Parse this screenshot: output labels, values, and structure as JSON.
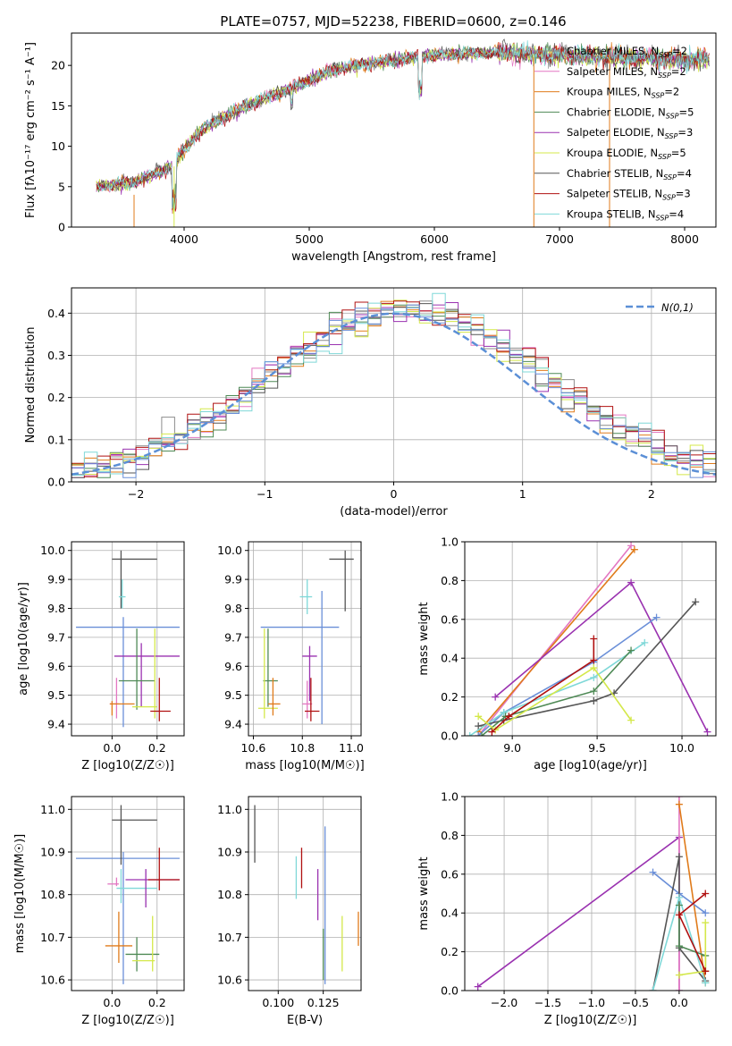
{
  "title": "PLATE=0757, MJD=52238, FIBERID=0600, z=0.146",
  "colors": [
    "#8c8c8c",
    "#e377c2",
    "#e07b1b",
    "#4f8a56",
    "#9a32b0",
    "#d4e84a",
    "#555555",
    "#b01010",
    "#7fd8d8",
    "#6a8fd8"
  ],
  "chart_data": [
    {
      "type": "line",
      "name": "spectrum",
      "xlabel": "wavelength [Angstrom, rest frame]",
      "ylabel": "Flux [fλ10⁻¹⁷ erg cm⁻² s⁻¹ A⁻¹]",
      "xlim": [
        3100,
        8250
      ],
      "ylim": [
        0,
        24
      ],
      "xticks": [
        4000,
        5000,
        6000,
        7000,
        8000
      ],
      "yticks": [
        0,
        5,
        10,
        15,
        20
      ],
      "continuum": [
        [
          3300,
          5.0
        ],
        [
          3600,
          5.5
        ],
        [
          3900,
          7.5
        ],
        [
          4100,
          11.5
        ],
        [
          4300,
          13.5
        ],
        [
          4500,
          15.0
        ],
        [
          4800,
          16.8
        ],
        [
          5200,
          19.5
        ],
        [
          5500,
          20.3
        ],
        [
          6000,
          21.3
        ],
        [
          6500,
          21.6
        ],
        [
          7000,
          21.3
        ],
        [
          7500,
          21.0
        ],
        [
          8000,
          20.7
        ],
        [
          8200,
          20.8
        ]
      ],
      "legend": [
        {
          "label": "Chabrier MILES, N_SSP=2",
          "color": "#8c8c8c"
        },
        {
          "label": "Salpeter MILES, N_SSP=2",
          "color": "#e377c2"
        },
        {
          "label": "Kroupa MILES, N_SSP=2",
          "color": "#e07b1b"
        },
        {
          "label": "Chabrier ELODIE, N_SSP=5",
          "color": "#4f8a56"
        },
        {
          "label": "Salpeter ELODIE, N_SSP=3",
          "color": "#9a32b0"
        },
        {
          "label": "Kroupa ELODIE, N_SSP=5",
          "color": "#d4e84a"
        },
        {
          "label": "Chabrier STELIB, N_SSP=4",
          "color": "#555555"
        },
        {
          "label": "Salpeter STELIB, N_SSP=3",
          "color": "#b01010"
        },
        {
          "label": "Kroupa STELIB, N_SSP=4",
          "color": "#7fd8d8"
        }
      ]
    },
    {
      "type": "line",
      "name": "residuals",
      "xlabel": "(data-model)/error",
      "ylabel": "Normed distribution",
      "xlim": [
        -2.5,
        2.5
      ],
      "ylim": [
        0,
        0.46
      ],
      "xticks": [
        -2,
        -1,
        0,
        1,
        2
      ],
      "yticks": [
        0.0,
        0.1,
        0.2,
        0.3,
        0.4
      ],
      "bin_width": 0.1,
      "legend": [
        {
          "label": "N(0,1)",
          "color": "#5b8fd6"
        }
      ]
    },
    {
      "type": "scatter",
      "name": "age-vs-Z",
      "xlabel": "Z [log10(Z/Z☉)]",
      "ylabel": "age  [log10(age/yr)]",
      "xlim": [
        -0.18,
        0.32
      ],
      "ylim": [
        9.36,
        10.03
      ],
      "xticks": [
        0.0,
        0.2
      ],
      "yticks": [
        9.4,
        9.5,
        9.6,
        9.7,
        9.8,
        9.9,
        10.0
      ],
      "points": [
        {
          "c": "#6a8fd8",
          "x": 0.05,
          "xl": -0.16,
          "xh": 0.3,
          "y": 9.735,
          "yl": 9.39,
          "yh": 9.77
        },
        {
          "c": "#555555",
          "x": 0.04,
          "xl": 0.0,
          "xh": 0.2,
          "y": 9.97,
          "yl": 9.8,
          "yh": 10.0
        },
        {
          "c": "#7fd8d8",
          "x": 0.045,
          "xl": 0.03,
          "xh": 0.06,
          "y": 9.84,
          "yl": 9.8,
          "yh": 9.9
        },
        {
          "c": "#9a32b0",
          "x": 0.13,
          "xl": 0.01,
          "xh": 0.3,
          "y": 9.635,
          "yl": 9.46,
          "yh": 9.68
        },
        {
          "c": "#4f8a56",
          "x": 0.11,
          "xl": 0.03,
          "xh": 0.19,
          "y": 9.55,
          "yl": 9.45,
          "yh": 9.73
        },
        {
          "c": "#d4e84a",
          "x": 0.19,
          "xl": 0.09,
          "xh": 0.2,
          "y": 9.46,
          "yl": 9.42,
          "yh": 9.73
        },
        {
          "c": "#e377c2",
          "x": 0.02,
          "xl": -0.01,
          "xh": 0.03,
          "y": 9.47,
          "yl": 9.42,
          "yh": 9.56
        },
        {
          "c": "#e07b1b",
          "x": 0.0,
          "xl": -0.01,
          "xh": 0.1,
          "y": 9.47,
          "yl": 9.43,
          "yh": 9.48
        },
        {
          "c": "#b01010",
          "x": 0.21,
          "xl": 0.17,
          "xh": 0.26,
          "y": 9.445,
          "yl": 9.41,
          "yh": 9.56
        }
      ]
    },
    {
      "type": "scatter",
      "name": "age-vs-mass",
      "xlabel": "mass [log10(M/M☉)]",
      "ylabel": "",
      "xlim": [
        10.58,
        11.04
      ],
      "ylim": [
        9.36,
        10.03
      ],
      "xticks": [
        10.6,
        10.8,
        11.0
      ],
      "yticks": [
        9.4,
        9.5,
        9.6,
        9.7,
        9.8,
        9.9,
        10.0
      ],
      "points": [
        {
          "c": "#6a8fd8",
          "x": 10.88,
          "xl": 10.63,
          "xh": 10.95,
          "y": 9.735,
          "yl": 9.4,
          "yh": 9.86
        },
        {
          "c": "#555555",
          "x": 10.975,
          "xl": 10.91,
          "xh": 11.01,
          "y": 9.97,
          "yl": 9.79,
          "yh": 10.0
        },
        {
          "c": "#7fd8d8",
          "x": 10.82,
          "xl": 10.79,
          "xh": 10.84,
          "y": 9.84,
          "yl": 9.78,
          "yh": 9.9
        },
        {
          "c": "#9a32b0",
          "x": 10.83,
          "xl": 10.8,
          "xh": 10.86,
          "y": 9.635,
          "yl": 9.48,
          "yh": 9.67
        },
        {
          "c": "#4f8a56",
          "x": 10.66,
          "xl": 10.64,
          "xh": 10.7,
          "y": 9.55,
          "yl": 9.46,
          "yh": 9.73
        },
        {
          "c": "#d4e84a",
          "x": 10.645,
          "xl": 10.62,
          "xh": 10.7,
          "y": 9.455,
          "yl": 9.42,
          "yh": 9.73
        },
        {
          "c": "#e377c2",
          "x": 10.82,
          "xl": 10.8,
          "xh": 10.84,
          "y": 9.47,
          "yl": 9.42,
          "yh": 9.55
        },
        {
          "c": "#e07b1b",
          "x": 10.68,
          "xl": 10.66,
          "xh": 10.71,
          "y": 9.47,
          "yl": 9.43,
          "yh": 9.56
        },
        {
          "c": "#b01010",
          "x": 10.835,
          "xl": 10.81,
          "xh": 10.87,
          "y": 9.445,
          "yl": 9.41,
          "yh": 9.56
        }
      ]
    },
    {
      "type": "line",
      "name": "massweight-vs-age",
      "xlabel": "age  [log10(age/yr)]",
      "ylabel": "mass weight",
      "xlim": [
        8.72,
        10.2
      ],
      "ylim": [
        0,
        1
      ],
      "xticks": [
        9.0,
        9.5,
        10.0
      ],
      "yticks": [
        0.0,
        0.2,
        0.4,
        0.6,
        0.8,
        1.0
      ],
      "series": [
        {
          "c": "#e377c2",
          "pts": [
            [
              8.8,
              0.0
            ],
            [
              9.7,
              0.98
            ]
          ]
        },
        {
          "c": "#e07b1b",
          "pts": [
            [
              8.8,
              0.02
            ],
            [
              9.72,
              0.96
            ]
          ]
        },
        {
          "c": "#9a32b0",
          "pts": [
            [
              8.9,
              0.2
            ],
            [
              9.7,
              0.79
            ],
            [
              10.15,
              0.02
            ]
          ]
        },
        {
          "c": "#6a8fd8",
          "pts": [
            [
              8.8,
              0.0
            ],
            [
              8.95,
              0.12
            ],
            [
              9.48,
              0.38
            ],
            [
              9.85,
              0.61
            ]
          ]
        },
        {
          "c": "#555555",
          "pts": [
            [
              8.8,
              0.05
            ],
            [
              8.95,
              0.08
            ],
            [
              9.48,
              0.18
            ],
            [
              9.6,
              0.22
            ],
            [
              10.08,
              0.69
            ]
          ]
        },
        {
          "c": "#7fd8d8",
          "pts": [
            [
              8.75,
              0.0
            ],
            [
              8.95,
              0.12
            ],
            [
              9.48,
              0.3
            ],
            [
              9.78,
              0.48
            ]
          ]
        },
        {
          "c": "#4f8a56",
          "pts": [
            [
              8.82,
              0.0
            ],
            [
              8.96,
              0.1
            ],
            [
              9.48,
              0.23
            ],
            [
              9.7,
              0.44
            ]
          ]
        },
        {
          "c": "#d4e84a",
          "pts": [
            [
              8.8,
              0.1
            ],
            [
              8.9,
              0.03
            ],
            [
              9.48,
              0.35
            ],
            [
              9.7,
              0.08
            ]
          ]
        },
        {
          "c": "#b01010",
          "pts": [
            [
              8.88,
              0.02
            ],
            [
              8.98,
              0.1
            ],
            [
              9.48,
              0.39
            ],
            [
              9.48,
              0.5
            ]
          ]
        }
      ]
    },
    {
      "type": "scatter",
      "name": "mass-vs-Z",
      "xlabel": "Z [log10(Z/Z☉)]",
      "ylabel": "mass [log10(M/M☉)]",
      "xlim": [
        -0.18,
        0.32
      ],
      "ylim": [
        10.575,
        11.03
      ],
      "xticks": [
        0.0,
        0.2
      ],
      "yticks": [
        10.6,
        10.7,
        10.8,
        10.9,
        11.0
      ],
      "points": [
        {
          "c": "#6a8fd8",
          "x": 0.05,
          "xl": -0.16,
          "xh": 0.3,
          "y": 10.885,
          "yl": 10.59,
          "yh": 10.9
        },
        {
          "c": "#555555",
          "x": 0.04,
          "xl": 0.0,
          "xh": 0.2,
          "y": 10.975,
          "yl": 10.87,
          "yh": 11.01
        },
        {
          "c": "#7fd8d8",
          "x": 0.04,
          "xl": 0.02,
          "xh": 0.2,
          "y": 10.815,
          "yl": 10.78,
          "yh": 10.86
        },
        {
          "c": "#9a32b0",
          "x": 0.15,
          "xl": 0.06,
          "xh": 0.3,
          "y": 10.835,
          "yl": 10.77,
          "yh": 10.86
        },
        {
          "c": "#4f8a56",
          "x": 0.11,
          "xl": 0.06,
          "xh": 0.21,
          "y": 10.66,
          "yl": 10.62,
          "yh": 10.7
        },
        {
          "c": "#d4e84a",
          "x": 0.18,
          "xl": 0.09,
          "xh": 0.19,
          "y": 10.645,
          "yl": 10.62,
          "yh": 10.75
        },
        {
          "c": "#e377c2",
          "x": 0.02,
          "xl": -0.02,
          "xh": 0.03,
          "y": 10.825,
          "yl": 10.82,
          "yh": 10.84
        },
        {
          "c": "#e07b1b",
          "x": 0.03,
          "xl": -0.03,
          "xh": 0.09,
          "y": 10.68,
          "yl": 10.64,
          "yh": 10.76
        },
        {
          "c": "#b01010",
          "x": 0.21,
          "xl": 0.16,
          "xh": 0.3,
          "y": 10.835,
          "yl": 10.81,
          "yh": 10.91
        }
      ]
    },
    {
      "type": "scatter",
      "name": "mass-vs-ebv",
      "xlabel": "E(B-V)",
      "ylabel": "",
      "xlim": [
        0.0835,
        0.146
      ],
      "ylim": [
        10.575,
        11.03
      ],
      "xticks": [
        0.1,
        0.125
      ],
      "xtick_labels": [
        "0.100",
        "0.125"
      ],
      "yticks": [
        10.6,
        10.7,
        10.8,
        10.9,
        11.0
      ],
      "points": [
        {
          "c": "#555555",
          "x": 0.087,
          "y": 10.94,
          "yl": 10.875,
          "yh": 11.01
        },
        {
          "c": "#7fd8d8",
          "x": 0.11,
          "y": 10.84,
          "yl": 10.79,
          "yh": 10.89
        },
        {
          "c": "#b01010",
          "x": 0.113,
          "y": 10.86,
          "yl": 10.815,
          "yh": 10.91
        },
        {
          "c": "#9a32b0",
          "x": 0.122,
          "y": 10.8,
          "yl": 10.74,
          "yh": 10.86
        },
        {
          "c": "#6a8fd8",
          "x": 0.126,
          "y": 10.78,
          "yl": 10.59,
          "yh": 10.96
        },
        {
          "c": "#4f8a56",
          "x": 0.125,
          "y": 10.66,
          "yl": 10.6,
          "yh": 10.72
        },
        {
          "c": "#d4e84a",
          "x": 0.1355,
          "y": 10.685,
          "yl": 10.62,
          "yh": 10.75
        },
        {
          "c": "#e07b1b",
          "x": 0.1445,
          "y": 10.72,
          "yl": 10.68,
          "yh": 10.76
        }
      ]
    },
    {
      "type": "line",
      "name": "massweight-vs-Z",
      "xlabel": "Z [log10(Z/Z☉)]",
      "ylabel": "mass weight",
      "xlim": [
        -2.45,
        0.42
      ],
      "ylim": [
        0,
        1
      ],
      "xticks": [
        -2.0,
        -1.5,
        -1.0,
        -0.5,
        0.0
      ],
      "yticks": [
        0.0,
        0.2,
        0.4,
        0.6,
        0.8,
        1.0
      ],
      "series": [
        {
          "c": "#9a32b0",
          "pts": [
            [
              -2.3,
              0.02
            ],
            [
              0.0,
              0.79
            ],
            [
              0.0,
              0.0
            ]
          ]
        },
        {
          "c": "#e377c2",
          "pts": [
            [
              0.0,
              1.0
            ],
            [
              0.0,
              0.0
            ]
          ]
        },
        {
          "c": "#e07b1b",
          "pts": [
            [
              0.0,
              0.96
            ],
            [
              0.3,
              0.04
            ]
          ]
        },
        {
          "c": "#6a8fd8",
          "pts": [
            [
              -0.3,
              0.61
            ],
            [
              0.0,
              0.5
            ],
            [
              0.3,
              0.4
            ]
          ]
        },
        {
          "c": "#555555",
          "pts": [
            [
              -0.3,
              0.0
            ],
            [
              0.0,
              0.69
            ],
            [
              0.0,
              0.22
            ],
            [
              0.3,
              0.05
            ]
          ]
        },
        {
          "c": "#7fd8d8",
          "pts": [
            [
              -0.3,
              0.0
            ],
            [
              0.0,
              0.48
            ],
            [
              0.3,
              0.04
            ]
          ]
        },
        {
          "c": "#4f8a56",
          "pts": [
            [
              0.0,
              0.44
            ],
            [
              0.0,
              0.23
            ],
            [
              0.3,
              0.18
            ],
            [
              0.3,
              0.1
            ]
          ]
        },
        {
          "c": "#d4e84a",
          "pts": [
            [
              0.0,
              0.08
            ],
            [
              0.3,
              0.1
            ],
            [
              0.3,
              0.35
            ]
          ]
        },
        {
          "c": "#b01010",
          "pts": [
            [
              0.3,
              0.5
            ],
            [
              0.0,
              0.39
            ],
            [
              0.3,
              0.1
            ]
          ]
        }
      ]
    }
  ]
}
